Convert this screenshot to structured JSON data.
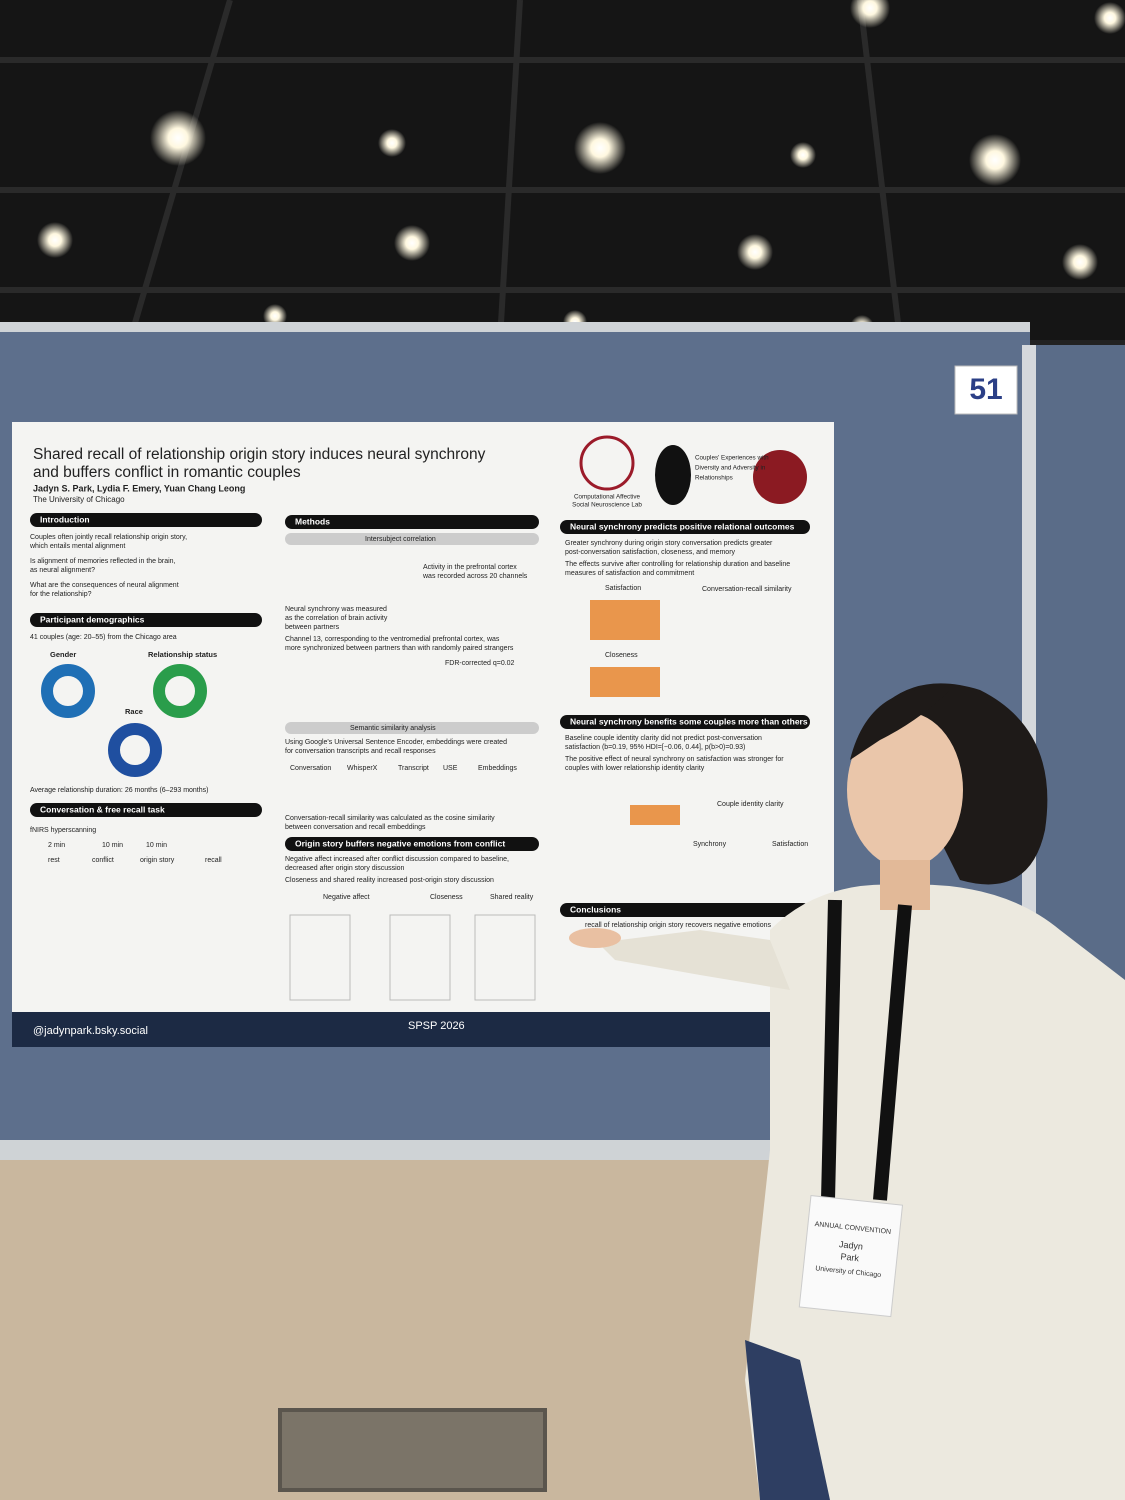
{
  "booth_number": "51",
  "poster": {
    "title_lines": [
      "Shared recall of relationship origin story induces neural synchrony",
      "and buffers conflict in romantic couples"
    ],
    "authors": "Jadyn S. Park, Lydia F. Emery, Yuan Chang Leong",
    "affiliation": "The University of Chicago",
    "logos": [
      "Computational Affective",
      "Social Neuroscience Lab",
      "Couples' Experiences with",
      "Diversity and Adversity in",
      "Relationships"
    ],
    "sections": [
      {
        "heading": "Introduction",
        "lines": [
          "Couples often jointly recall relationship origin story,",
          "which entails mental alignment",
          "Is alignment of memories reflected in the brain,",
          "as neural alignment?",
          "What are the consequences of neural alignment",
          "for the relationship?"
        ]
      },
      {
        "heading": "Participant demographics",
        "lines": [
          "41 couples (age: 20–55) from the Chicago area",
          "Gender",
          "Relationship status",
          "Race",
          "Average relationship duration: 26 months (6–293 months)"
        ]
      },
      {
        "heading": "Conversation & free recall task",
        "lines": [
          "fNIRS hyperscanning",
          "2 min",
          "10 min",
          "10 min",
          "rest",
          "conflict",
          "origin story",
          "recall"
        ]
      },
      {
        "heading": "Methods",
        "lines": [
          "Intersubject correlation",
          "Activity in the prefrontal cortex",
          "was recorded across 20 channels",
          "Neural synchrony was measured",
          "as the correlation of brain activity",
          "between partners",
          "Channel 13, corresponding to the ventromedial prefrontal cortex, was",
          "more synchronized between partners than with randomly paired strangers",
          "FDR-corrected q=0.02",
          "Semantic similarity analysis",
          "Using Google's Universal Sentence Encoder, embeddings were created",
          "for conversation transcripts and recall responses",
          "Conversation",
          "WhisperX",
          "Transcript",
          "USE",
          "Embeddings",
          "Conversation-recall similarity was calculated as the cosine similarity",
          "between conversation and recall embeddings"
        ]
      },
      {
        "heading": "Origin story buffers negative emotions from conflict",
        "lines": [
          "Negative affect increased after conflict discussion compared to baseline,",
          "decreased after origin story discussion",
          "Closeness and shared reality increased post-origin story discussion",
          "Negative affect",
          "Closeness",
          "Shared reality"
        ]
      },
      {
        "heading": "Neural synchrony predicts positive relational outcomes",
        "lines": [
          "Greater synchrony during origin story conversation predicts greater",
          "post-conversation satisfaction, closeness, and memory",
          "The effects survive after controlling for relationship duration and baseline",
          "measures of satisfaction and commitment",
          "Satisfaction",
          "Conversation-recall similarity",
          "Closeness"
        ]
      },
      {
        "heading": "Neural synchrony benefits some couples more than others",
        "lines": [
          "Baseline couple identity clarity did not predict post-conversation",
          "satisfaction (b=0.19, 95% HDI=[−0.06, 0.44], p(b>0)=0.93)",
          "The positive effect of neural synchrony on satisfaction was stronger for",
          "couples with lower relationship identity clarity",
          "Couple identity clarity",
          "Synchrony",
          "Satisfaction"
        ]
      },
      {
        "heading": "Conclusions",
        "lines": [
          "recall of relationship origin story recovers negative emotions"
        ]
      }
    ],
    "footer": {
      "handle": "@jadynpark.bsky.social",
      "event": "SPSP 2026"
    }
  },
  "badge": [
    "ANNUAL CONVENTION",
    "Jadyn",
    "Park",
    "University of Chicago"
  ]
}
